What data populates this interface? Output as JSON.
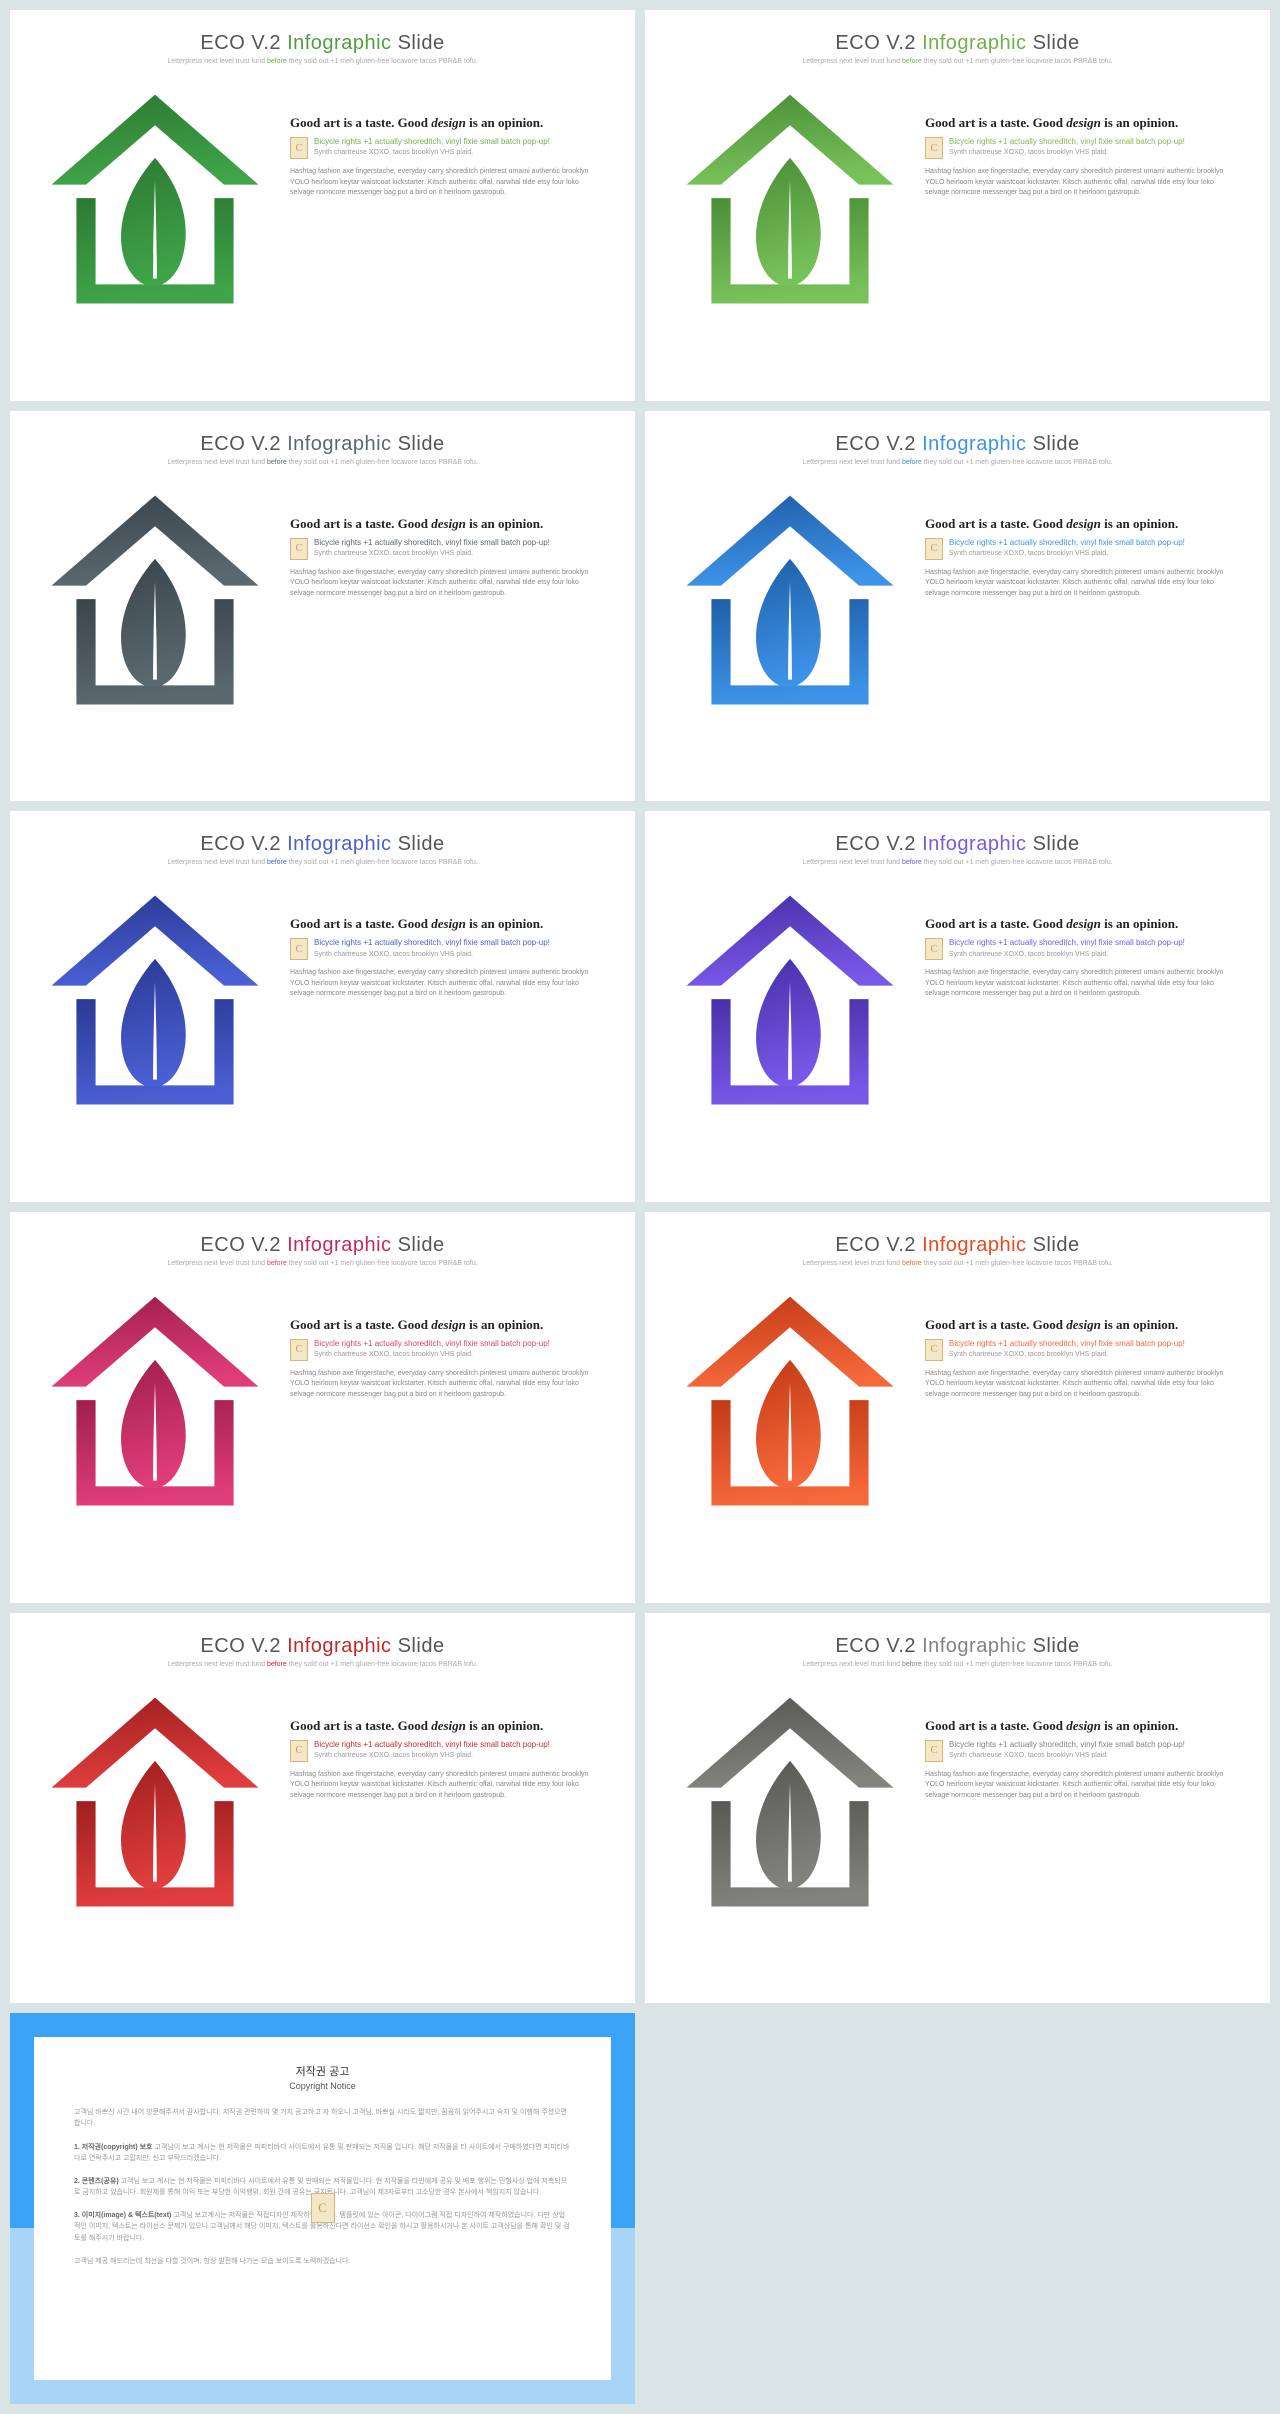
{
  "common": {
    "title_prefix": "ECO V.2 ",
    "title_accent": "Infographic",
    "title_suffix": " Slide",
    "subtitle_a": "Letterpress next level trust fund ",
    "subtitle_before": "before",
    "subtitle_b": " they sold out +1 meh gluten-free locavore tacos PBR&B tofu.",
    "headline_a": "Good ",
    "headline_b": "art",
    "headline_c": " is a taste. Good ",
    "headline_d": "design",
    "headline_e": " is an opinion.",
    "callout": "Bicycle rights +1 actually shoreditch, vinyl fixie small batch pop-up!",
    "callout_sub": "Synth chartreuse XOXO, tacos brooklyn VHS plaid.",
    "para": "Hashtag fashion axe fingerstache, everyday carry shoreditch pinterest umami authentic brooklyn YOLO heirloom keytar waistcoat kickstarter. Kitsch authentic offal, narwhal tilde etsy four loko selvage normcore messenger bag put a bird on it heirloom gastropub.",
    "badge_letter": "C"
  },
  "slides": [
    {
      "accent_color": "#2f8c3a",
      "grad_top": "#2d7a33",
      "grad_bot": "#3fa448",
      "callout_color": "#6fb04a",
      "title_accent_color": "#519e3e"
    },
    {
      "accent_color": "#5ba843",
      "grad_top": "#4a8f37",
      "grad_bot": "#78c25a",
      "callout_color": "#7fb850",
      "title_accent_color": "#6fb04a"
    },
    {
      "accent_color": "#445058",
      "grad_top": "#3a454c",
      "grad_bot": "#5a6870",
      "callout_color": "#5a6870",
      "title_accent_color": "#5a6870"
    },
    {
      "accent_color": "#2878d4",
      "grad_top": "#1f5fa8",
      "grad_bot": "#3d93e8",
      "callout_color": "#3d93e8",
      "title_accent_color": "#3d93e8"
    },
    {
      "accent_color": "#3448b8",
      "grad_top": "#2a3a94",
      "grad_bot": "#4a5fd4",
      "callout_color": "#4a5fd4",
      "title_accent_color": "#4a5fd4"
    },
    {
      "accent_color": "#5a3fd4",
      "grad_top": "#4830a8",
      "grad_bot": "#7858e8",
      "callout_color": "#7858e8",
      "title_accent_color": "#7858e8"
    },
    {
      "accent_color": "#c8285f",
      "grad_top": "#a01f4c",
      "grad_bot": "#e03d78",
      "callout_color": "#e03d78",
      "title_accent_color": "#c8285f"
    },
    {
      "accent_color": "#e84a1f",
      "grad_top": "#c23a15",
      "grad_bot": "#f5683a",
      "callout_color": "#f5683a",
      "title_accent_color": "#e84a1f"
    },
    {
      "accent_color": "#c82828",
      "grad_top": "#a01f1f",
      "grad_bot": "#e03d3d",
      "callout_color": "#c82828",
      "title_accent_color": "#c82828"
    },
    {
      "accent_color": "#6a6a66",
      "grad_top": "#585854",
      "grad_bot": "#82827e",
      "callout_color": "#82827e",
      "title_accent_color": "#82827e"
    }
  ],
  "copyright": {
    "title_ko": "저작권 공고",
    "title_en": "Copyright Notice",
    "p1": "고객님 바쁘신 시간 내어 방문해주셔서 감사합니다. 저작권 관련하여 몇 가지 공고하고 자 하오니 고객님, 바쁘실 시라도 짧지만, 꼼꼼히 읽어주시고 숙지 및 이행해 주셨으면 합니다.",
    "p2_label": "1. 저작권(copyright) 보호",
    "p2": " 고객님이 보고 계시는 현 저작물은 피피티바다 사이트에서 유통 및 판매되는 저작물 입니다. 해당 저작물을 타 사이트에서 구매하였다면 피피티바다로 연락주시고 고맙지만, 신고 부탁드리겠습니다.",
    "p3_label": "2. 콘텐츠(공유)",
    "p3": " 고객님 보고 계시는 현 저작물은 피피티바다 사이트에서 유통 및 판매되는 저작물입니다. 현 저작물을 타인에게 공유 및 배포 행위는 민형사상 법에 저촉되므로 금지하고 있습니다. 회원제를 통해 이익 또는 부당한 이익행위, 회원 간에 공유는 금지됩니다. 고객님이 제3자로부터 고소당한 경우 본사에서 책임지지 않습니다.",
    "p4_label": "3. 이미지(image) & 텍스트(text)",
    "p4": " 고객님 보고계시는 저작물은 직접디자인 제작하였습니다. 템플릿에 있는 아이콘, 다이어그램 직접 디자인하여 제작하였습니다. 다만 상업적인 이미지, 텍스트는 라이선스 문제가 있으니 고객님께서 해당 이미지, 텍스트를 활용하신다면 라이선스 확인을 하시고 활용하시거나 본 사이트 고객상담을 통해 확인 및 검토를 해주시기 바랍니다.",
    "p5": "고객님 제공 해드리는데 최선을 다할 것이며, 항상 발전해 나가는 모습 보이도록 노력하겠습니다."
  }
}
